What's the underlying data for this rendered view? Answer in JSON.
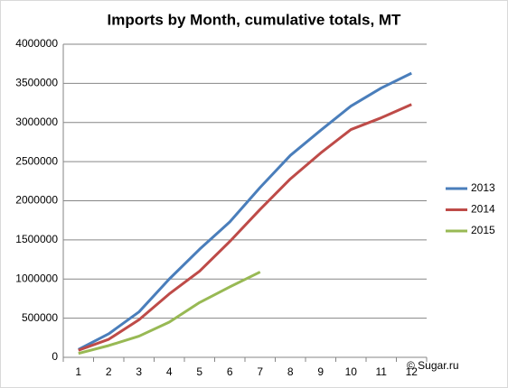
{
  "chart_data": {
    "type": "line",
    "title": "Imports by Month, cumulative totals, MT",
    "categories": [
      1,
      2,
      3,
      4,
      5,
      6,
      7,
      8,
      9,
      10,
      11,
      12
    ],
    "series": [
      {
        "name": "2013",
        "color": "#4a7ebb",
        "values": [
          100000,
          300000,
          580000,
          1000000,
          1380000,
          1730000,
          2170000,
          2580000,
          2900000,
          3210000,
          3440000,
          3630000
        ]
      },
      {
        "name": "2014",
        "color": "#be4b48",
        "values": [
          90000,
          230000,
          480000,
          810000,
          1100000,
          1480000,
          1890000,
          2280000,
          2610000,
          2910000,
          3060000,
          3230000
        ]
      },
      {
        "name": "2015",
        "color": "#98b954",
        "values": [
          50000,
          150000,
          270000,
          450000,
          700000,
          900000,
          1090000,
          null,
          null,
          null,
          null,
          null
        ]
      }
    ],
    "ylim": [
      0,
      4000000
    ],
    "yticks": [
      0,
      500000,
      1000000,
      1500000,
      2000000,
      2500000,
      3000000,
      3500000,
      4000000
    ],
    "grid": true,
    "legend": "right",
    "annotation": "© Sugar.ru"
  }
}
